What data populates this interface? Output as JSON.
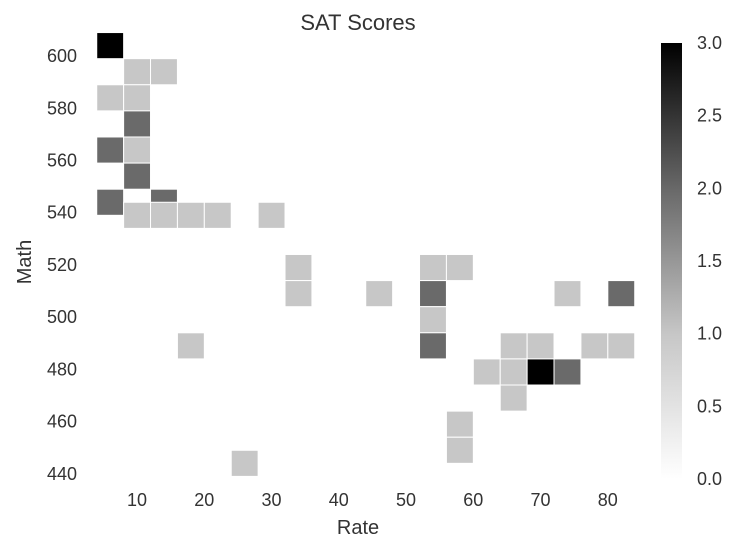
{
  "chart_data": {
    "type": "heatmap",
    "title": "SAT Scores",
    "xlabel": "Rate",
    "ylabel": "Math",
    "x_ticks": [
      10,
      20,
      30,
      40,
      50,
      60,
      70,
      80
    ],
    "y_ticks": [
      600,
      580,
      560,
      540,
      520,
      500,
      480,
      460,
      440
    ],
    "xlim": [
      3,
      83
    ],
    "ylim": [
      438,
      605
    ],
    "x_bin_width": 4,
    "y_bin_width": 10,
    "colorbar": {
      "min": 0.0,
      "max": 3.0,
      "ticks": [
        "3.0",
        "2.5",
        "2.0",
        "1.5",
        "1.0",
        "0.5",
        "0.0"
      ],
      "colormap": "greys"
    },
    "grid": false,
    "cells": [
      {
        "x": 4,
        "y": 599,
        "count": 3
      },
      {
        "x": 8,
        "y": 589,
        "count": 1
      },
      {
        "x": 12,
        "y": 589,
        "count": 1
      },
      {
        "x": 4,
        "y": 579,
        "count": 1
      },
      {
        "x": 8,
        "y": 579,
        "count": 1
      },
      {
        "x": 8,
        "y": 569,
        "count": 2
      },
      {
        "x": 4,
        "y": 559,
        "count": 2
      },
      {
        "x": 8,
        "y": 559,
        "count": 1
      },
      {
        "x": 8,
        "y": 549,
        "count": 2
      },
      {
        "x": 4,
        "y": 539,
        "count": 2
      },
      {
        "x": 12,
        "y": 539,
        "count": 2
      },
      {
        "x": 8,
        "y": 534,
        "count": 1
      },
      {
        "x": 12,
        "y": 534,
        "count": 1
      },
      {
        "x": 16,
        "y": 534,
        "count": 1
      },
      {
        "x": 20,
        "y": 534,
        "count": 1
      },
      {
        "x": 28,
        "y": 534,
        "count": 1
      },
      {
        "x": 32,
        "y": 514,
        "count": 1
      },
      {
        "x": 32,
        "y": 504,
        "count": 1
      },
      {
        "x": 44,
        "y": 504,
        "count": 1
      },
      {
        "x": 52,
        "y": 514,
        "count": 1
      },
      {
        "x": 56,
        "y": 514,
        "count": 1
      },
      {
        "x": 52,
        "y": 504,
        "count": 2
      },
      {
        "x": 52,
        "y": 494,
        "count": 1
      },
      {
        "x": 52,
        "y": 484,
        "count": 2
      },
      {
        "x": 16,
        "y": 484,
        "count": 1
      },
      {
        "x": 64,
        "y": 484,
        "count": 1
      },
      {
        "x": 68,
        "y": 484,
        "count": 1
      },
      {
        "x": 76,
        "y": 484,
        "count": 1
      },
      {
        "x": 80,
        "y": 484,
        "count": 1
      },
      {
        "x": 72,
        "y": 504,
        "count": 1
      },
      {
        "x": 80,
        "y": 504,
        "count": 2
      },
      {
        "x": 60,
        "y": 474,
        "count": 1
      },
      {
        "x": 64,
        "y": 474,
        "count": 1
      },
      {
        "x": 68,
        "y": 474,
        "count": 3
      },
      {
        "x": 72,
        "y": 474,
        "count": 2
      },
      {
        "x": 64,
        "y": 464,
        "count": 1
      },
      {
        "x": 56,
        "y": 454,
        "count": 1
      },
      {
        "x": 56,
        "y": 444,
        "count": 1
      },
      {
        "x": 24,
        "y": 439,
        "count": 1
      }
    ]
  }
}
